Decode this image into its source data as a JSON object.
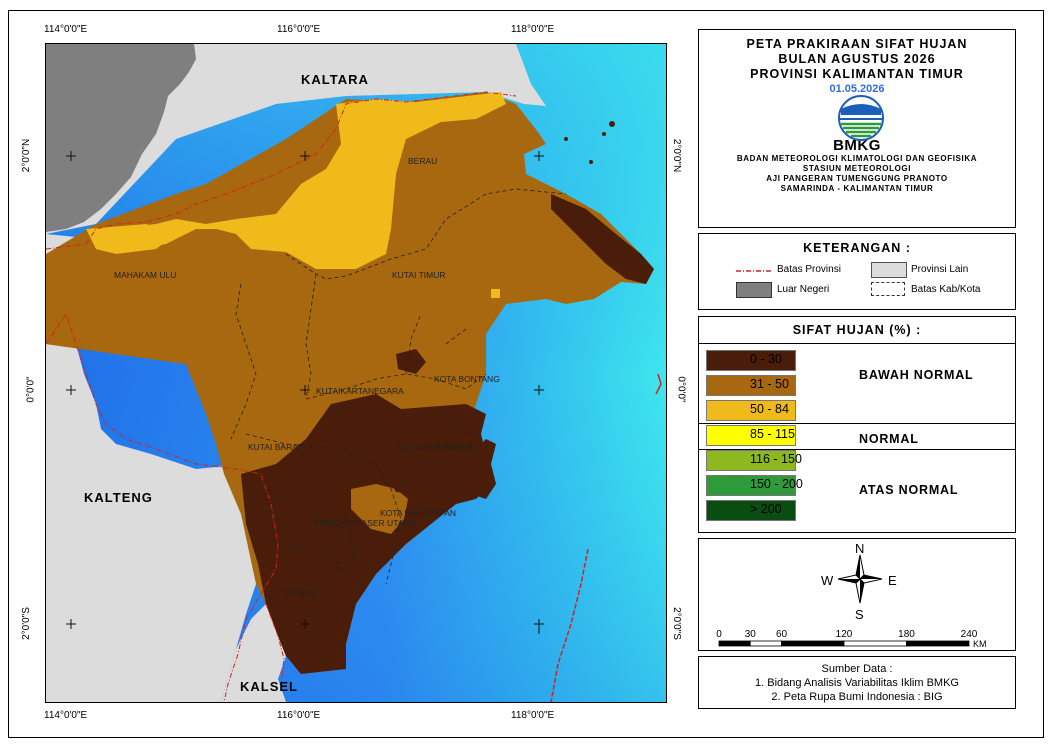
{
  "coords": {
    "top": [
      "114°0'0\"E",
      "116°0'0\"E",
      "118°0'0\"E"
    ],
    "bottom": [
      "114°0'0\"E",
      "116°0'0\"E",
      "118°0'0\"E"
    ],
    "left": [
      "2°0'0\"N",
      "0°0'0\"",
      "2°0'0\"S"
    ],
    "right": [
      "2°0'0\"N",
      "0°0'0\"",
      "2°0'0\"S"
    ]
  },
  "map_labels": {
    "kaltara": "KALTARA",
    "kalteng": "KALTENG",
    "kalsel": "KALSEL",
    "berau": "BERAU",
    "mahakam_ulu": "MAHAKAM ULU",
    "kutai_timur": "KUTAI TIMUR",
    "kutai_kartanegara": "KUTAIKARTANEGARA",
    "kota_bontang": "KOTA BONTANG",
    "kutai_barat": "KUTAI BARAT",
    "kota_samarinda": "KOTA SAMARINDA",
    "kota_balikpapan": "KOTA BALIKPAPAN",
    "penajam": "PENAJAM PASER UTARA",
    "paser": "PASER"
  },
  "title": {
    "line1": "PETA PRAKIRAAN SIFAT HUJAN",
    "line2": "BULAN AGUSTUS 2026",
    "line3": "PROVINSI KALIMANTAN TIMUR",
    "date": "01.05.2026",
    "logo_text": "BMKG",
    "org1": "BADAN METEOROLOGI KLIMATOLOGI DAN GEOFISIKA",
    "org2": "STASIUN METEOROLOGI",
    "org3": "AJI PANGERAN TUMENGGUNG PRANOTO",
    "org4": "SAMARINDA - KALIMANTAN TIMUR"
  },
  "keterangan": {
    "header": "KETERANGAN :",
    "batas_provinsi": "Batas Provinsi",
    "provinsi_lain": "Provinsi Lain",
    "luar_negeri": "Luar Negeri",
    "batas_kab": "Batas Kab/Kota"
  },
  "sifat": {
    "header": "SIFAT HUJAN (%) :",
    "classes": [
      {
        "label": "0 - 30",
        "color": "#4a1d0a"
      },
      {
        "label": "31 - 50",
        "color": "#a8680f"
      },
      {
        "label": "50 - 84",
        "color": "#f0bb1a"
      },
      {
        "label": "85 - 115",
        "color": "#ffff00"
      },
      {
        "label": "116 - 150",
        "color": "#8db820"
      },
      {
        "label": "150 - 200",
        "color": "#2e9a3a"
      },
      {
        "label": "> 200",
        "color": "#0a4d12"
      }
    ],
    "bawah": "BAWAH NORMAL",
    "normal": "NORMAL",
    "atas": "ATAS NORMAL"
  },
  "compass": {
    "n": "N",
    "s": "S",
    "e": "E",
    "w": "W"
  },
  "scale": {
    "ticks": [
      "0",
      "30",
      "60",
      "120",
      "180",
      "240"
    ],
    "unit": "KM"
  },
  "source": {
    "header": "Sumber Data :",
    "line1": "1. Bidang Analisis Variabilitas Iklim BMKG",
    "line2": "2. Peta Rupa Bumi Indonesia : BIG"
  }
}
